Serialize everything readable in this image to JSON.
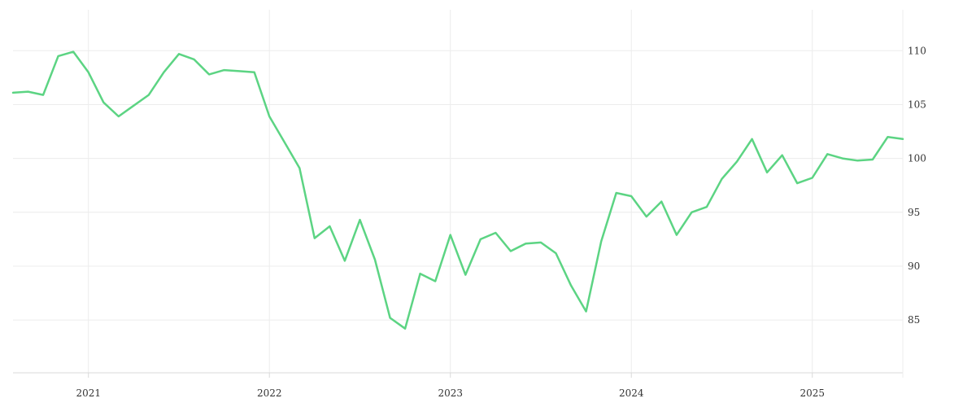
{
  "chart_data": {
    "type": "line",
    "title": "",
    "xlabel": "",
    "ylabel": "",
    "x_tick_labels": [
      "2021",
      "2022",
      "2023",
      "2024",
      "2025"
    ],
    "y_tick_labels": [
      "85",
      "90",
      "95",
      "100",
      "105",
      "110"
    ],
    "y_ticks": [
      85,
      90,
      95,
      100,
      105,
      110
    ],
    "ylim": [
      80.1,
      113.8
    ],
    "xlim": [
      "2020-08",
      "2025-07"
    ],
    "grid": true,
    "y_axis_position": "right",
    "series_color": "#5cd483",
    "series": [
      {
        "x": [
          "2020-08",
          "2020-09",
          "2020-10",
          "2020-11",
          "2020-12",
          "2021-01",
          "2021-02",
          "2021-03",
          "2021-04",
          "2021-05",
          "2021-06",
          "2021-07",
          "2021-08",
          "2021-09",
          "2021-10",
          "2021-11",
          "2021-12",
          "2022-01",
          "2022-02",
          "2022-03",
          "2022-04",
          "2022-05",
          "2022-06",
          "2022-07",
          "2022-08",
          "2022-09",
          "2022-10",
          "2022-11",
          "2022-12",
          "2023-01",
          "2023-02",
          "2023-03",
          "2023-04",
          "2023-05",
          "2023-06",
          "2023-07",
          "2023-08",
          "2023-09",
          "2023-10",
          "2023-11",
          "2023-12",
          "2024-01",
          "2024-02",
          "2024-03",
          "2024-04",
          "2024-05",
          "2024-06",
          "2024-07",
          "2024-08",
          "2024-09",
          "2024-10",
          "2024-11",
          "2024-12",
          "2025-01",
          "2025-02",
          "2025-03",
          "2025-04",
          "2025-05",
          "2025-06",
          "2025-07"
        ],
        "values": [
          106.1,
          106.2,
          105.9,
          109.5,
          109.9,
          108.0,
          105.2,
          103.9,
          104.9,
          105.9,
          108.0,
          109.7,
          109.2,
          107.8,
          108.2,
          108.1,
          108.0,
          103.9,
          101.5,
          99.1,
          92.6,
          93.7,
          90.5,
          94.3,
          90.6,
          85.2,
          84.2,
          89.3,
          88.6,
          92.9,
          89.2,
          92.5,
          93.1,
          91.4,
          92.1,
          92.2,
          91.2,
          88.2,
          85.8,
          92.3,
          96.8,
          96.5,
          94.6,
          96.0,
          92.9,
          95.0,
          95.5,
          98.1,
          99.7,
          101.8,
          98.7,
          100.3,
          97.7,
          98.2,
          100.4,
          100.0,
          99.8,
          99.9,
          102.0,
          101.8
        ]
      }
    ]
  }
}
